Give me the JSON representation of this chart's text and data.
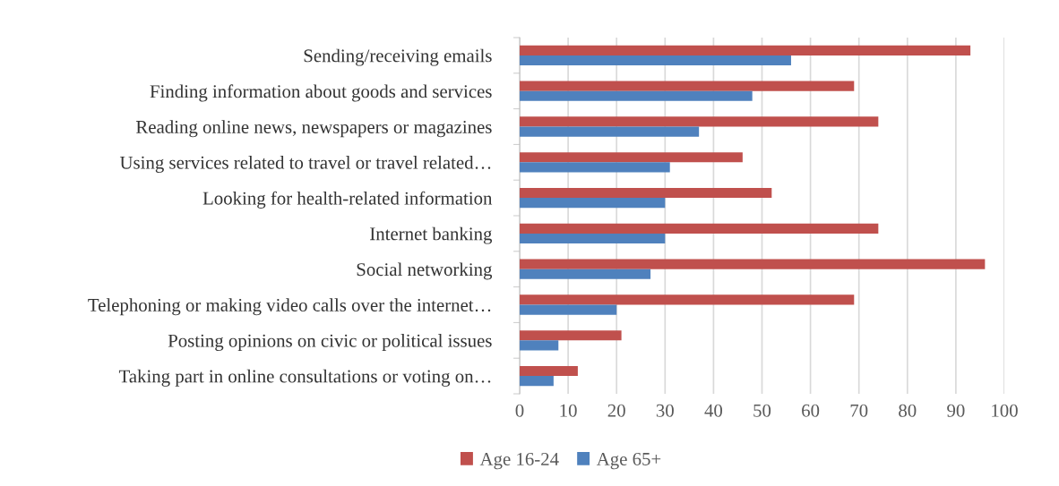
{
  "chart_data": {
    "type": "bar",
    "orientation": "horizontal",
    "categories": [
      "Sending/receiving emails",
      "Finding information about goods and services",
      "Reading online news, newspapers or magazines",
      "Using services related to travel or travel related…",
      "Looking for health-related information",
      "Internet banking",
      "Social networking",
      "Telephoning or making video calls over the internet…",
      "Posting opinions on civic or political issues",
      "Taking part in online consultations or voting on…"
    ],
    "series": [
      {
        "name": "Age 16-24",
        "color": "#c0504d",
        "values": [
          93,
          69,
          74,
          46,
          52,
          74,
          96,
          69,
          21,
          12
        ]
      },
      {
        "name": "Age 65+",
        "color": "#4f81bd",
        "values": [
          56,
          48,
          37,
          31,
          30,
          30,
          27,
          20,
          8,
          7
        ]
      }
    ],
    "xlim": [
      0,
      100
    ],
    "xticks": [
      0,
      10,
      20,
      30,
      40,
      50,
      60,
      70,
      80,
      90,
      100
    ],
    "grid": "x",
    "legend": "bottom"
  }
}
